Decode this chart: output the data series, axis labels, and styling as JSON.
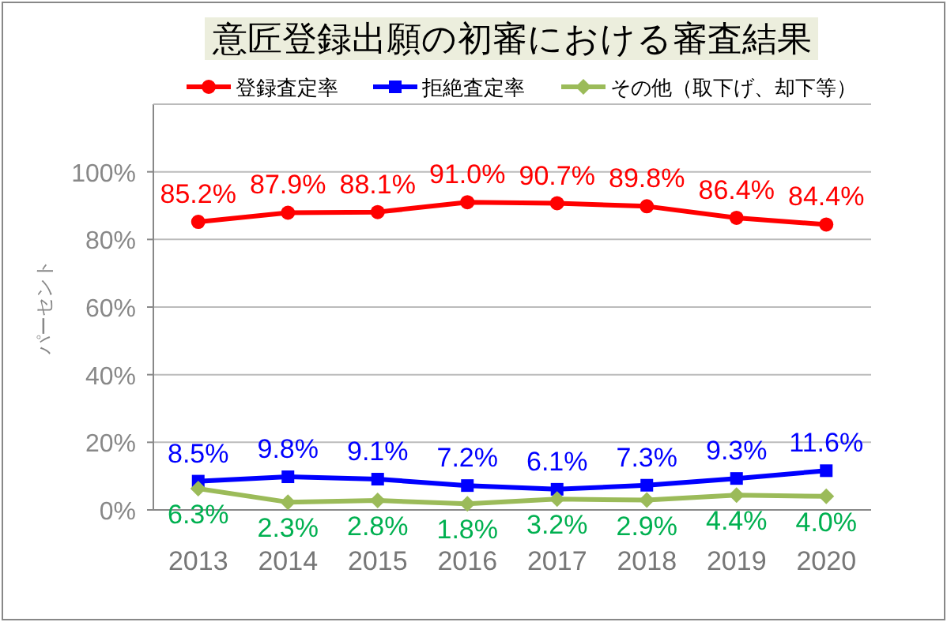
{
  "chart_data": {
    "type": "line",
    "title": "意匠登録出願の初審における審査結果",
    "ylabel": "パーセント",
    "categories": [
      "2013",
      "2014",
      "2015",
      "2016",
      "2017",
      "2018",
      "2019",
      "2020"
    ],
    "series": [
      {
        "name": "登録査定率",
        "color": "#ff0000",
        "marker": "circle",
        "values": [
          85.2,
          87.9,
          88.1,
          91.0,
          90.7,
          89.8,
          86.4,
          84.4
        ],
        "value_labels": [
          "85.2%",
          "87.9%",
          "88.1%",
          "91.0%",
          "90.7%",
          "89.8%",
          "86.4%",
          "84.4%"
        ]
      },
      {
        "name": "拒絶査定率",
        "color": "#0000ff",
        "marker": "square",
        "values": [
          8.5,
          9.8,
          9.1,
          7.2,
          6.1,
          7.3,
          9.3,
          11.6
        ],
        "value_labels": [
          "8.5%",
          "9.8%",
          "9.1%",
          "7.2%",
          "6.1%",
          "7.3%",
          "9.3%",
          "11.6%"
        ]
      },
      {
        "name": "その他（取下げ、却下等）",
        "color": "#9bbb59",
        "marker": "diamond",
        "values": [
          6.3,
          2.3,
          2.8,
          1.8,
          3.2,
          2.9,
          4.4,
          4.0
        ],
        "value_labels": [
          "6.3%",
          "2.3%",
          "2.8%",
          "1.8%",
          "3.2%",
          "2.9%",
          "4.4%",
          "4.0%"
        ]
      }
    ],
    "ylim": [
      0,
      120
    ],
    "yticks": [
      {
        "value": 0,
        "label": "0%"
      },
      {
        "value": 20,
        "label": "20%"
      },
      {
        "value": 40,
        "label": "40%"
      },
      {
        "value": 60,
        "label": "60%"
      },
      {
        "value": 80,
        "label": "80%"
      },
      {
        "value": 100,
        "label": "100%"
      }
    ],
    "grid": "y",
    "legend": "top",
    "line_style": "solid"
  }
}
